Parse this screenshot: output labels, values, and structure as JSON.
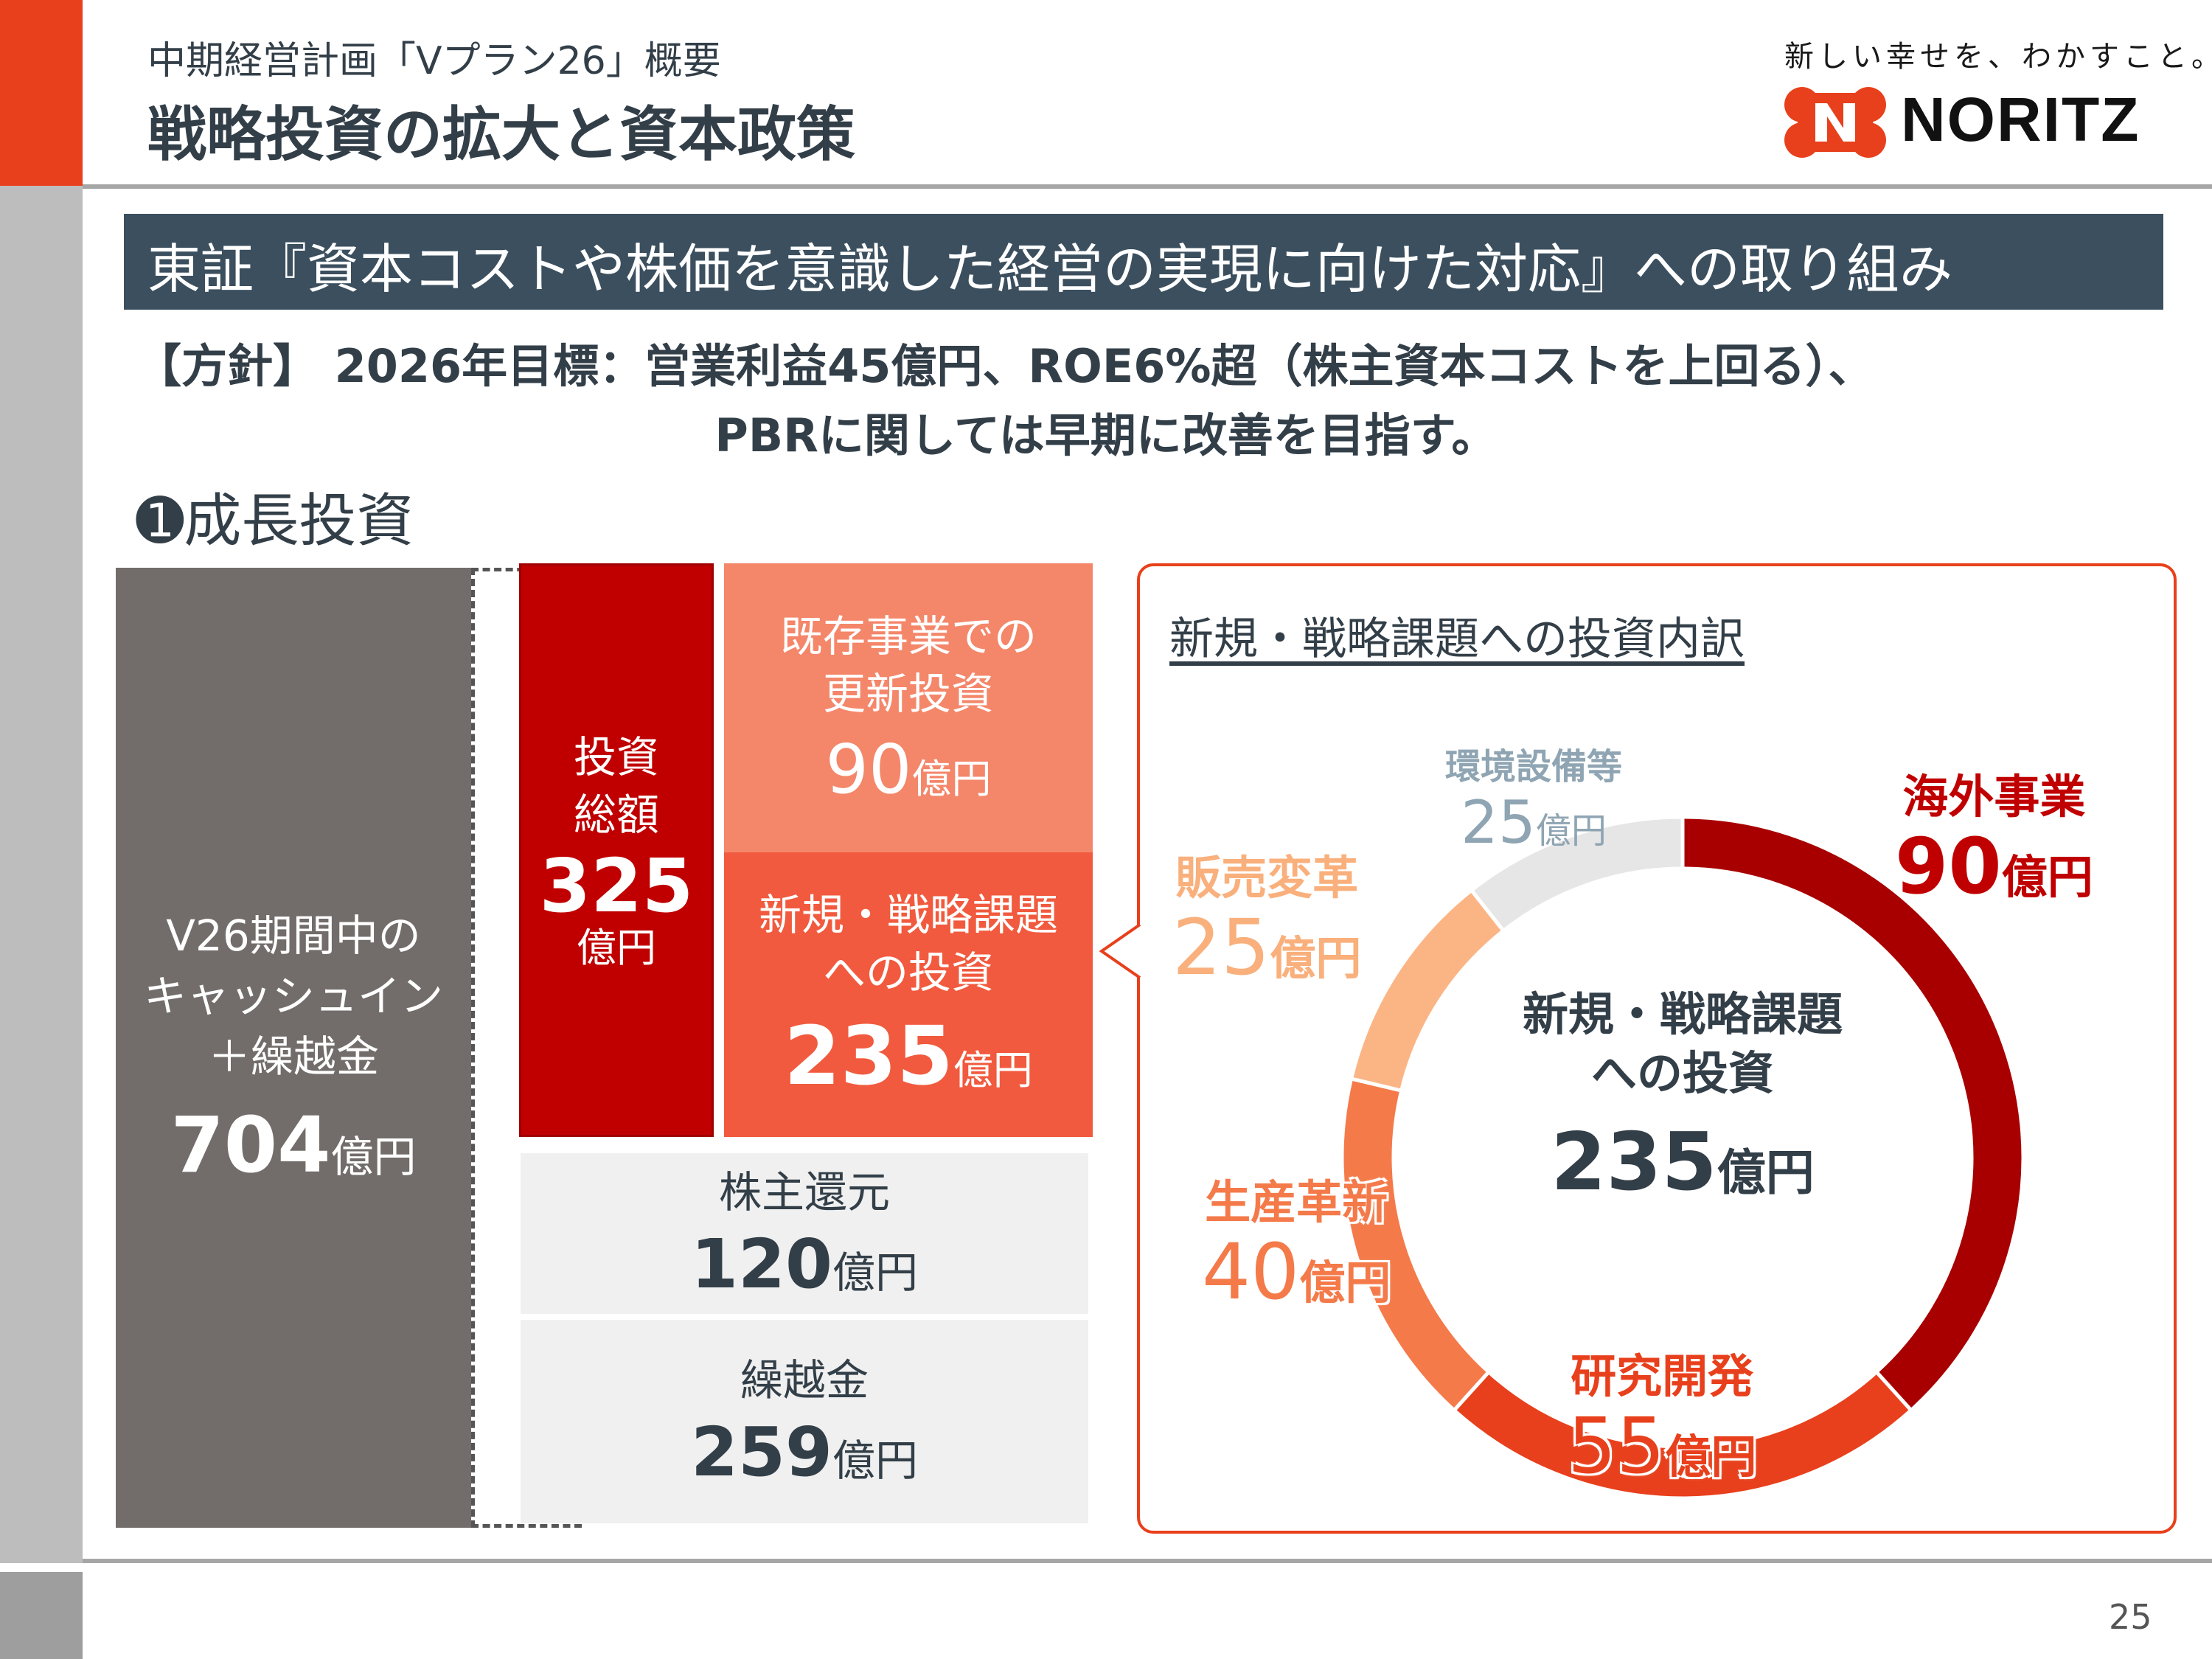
{
  "header": {
    "subtitle": "中期経営計画「Vプラン26」概要",
    "title": "戦略投資の拡大と資本政策",
    "slogan": "新しい幸せを、わかすこと。",
    "logo_text": "NORITZ",
    "accent_color": "#e8401c"
  },
  "banner": {
    "text": "東証『資本コストや株価を意識した経営の実現に向けた対応』への取り組み",
    "color": "#3b4f5e"
  },
  "policy": {
    "line1": "【方針】 2026年目標：営業利益45億円、ROE6%超（株主資本コストを上回る）、",
    "line2": "PBRに関しては早期に改善を目指す。"
  },
  "section": {
    "title": "➊成長投資"
  },
  "cash": {
    "line1": "V26期間中の",
    "line2": "キャッシュイン",
    "line3": "＋繰越金",
    "value": "704",
    "unit": "億円"
  },
  "investment_total": {
    "line1": "投資",
    "line2": "総額",
    "value": "325",
    "unit": "億円"
  },
  "renewal": {
    "line1": "既存事業での",
    "line2": "更新投資",
    "value": "90",
    "unit": "億円"
  },
  "new_investment": {
    "line1": "新規・戦略課題",
    "line2": "への投資",
    "value": "235",
    "unit": "億円"
  },
  "shareholder_return": {
    "label": "株主還元",
    "value": "120",
    "unit": "億円"
  },
  "carryover": {
    "label": "繰越金",
    "value": "259",
    "unit": "億円"
  },
  "breakdown": {
    "title": "新規・戦略課題への投資内訳",
    "center_line1": "新規・戦略課題",
    "center_line2": "への投資",
    "center_value": "235",
    "center_unit": "億円"
  },
  "chart_data": {
    "type": "pie",
    "title": "新規・戦略課題への投資内訳",
    "unit": "億円",
    "slices": [
      {
        "label": "海外事業",
        "value": 90,
        "color": "#a80000"
      },
      {
        "label": "研究開発",
        "value": 55,
        "color": "#e8401c"
      },
      {
        "label": "生産革新",
        "value": 40,
        "color": "#f47a4a"
      },
      {
        "label": "販売変革",
        "value": 25,
        "color": "#fbb585"
      },
      {
        "label": "環境設備等",
        "value": 25,
        "color": "#e6e6e6"
      }
    ]
  },
  "footer": {
    "page": "25"
  }
}
